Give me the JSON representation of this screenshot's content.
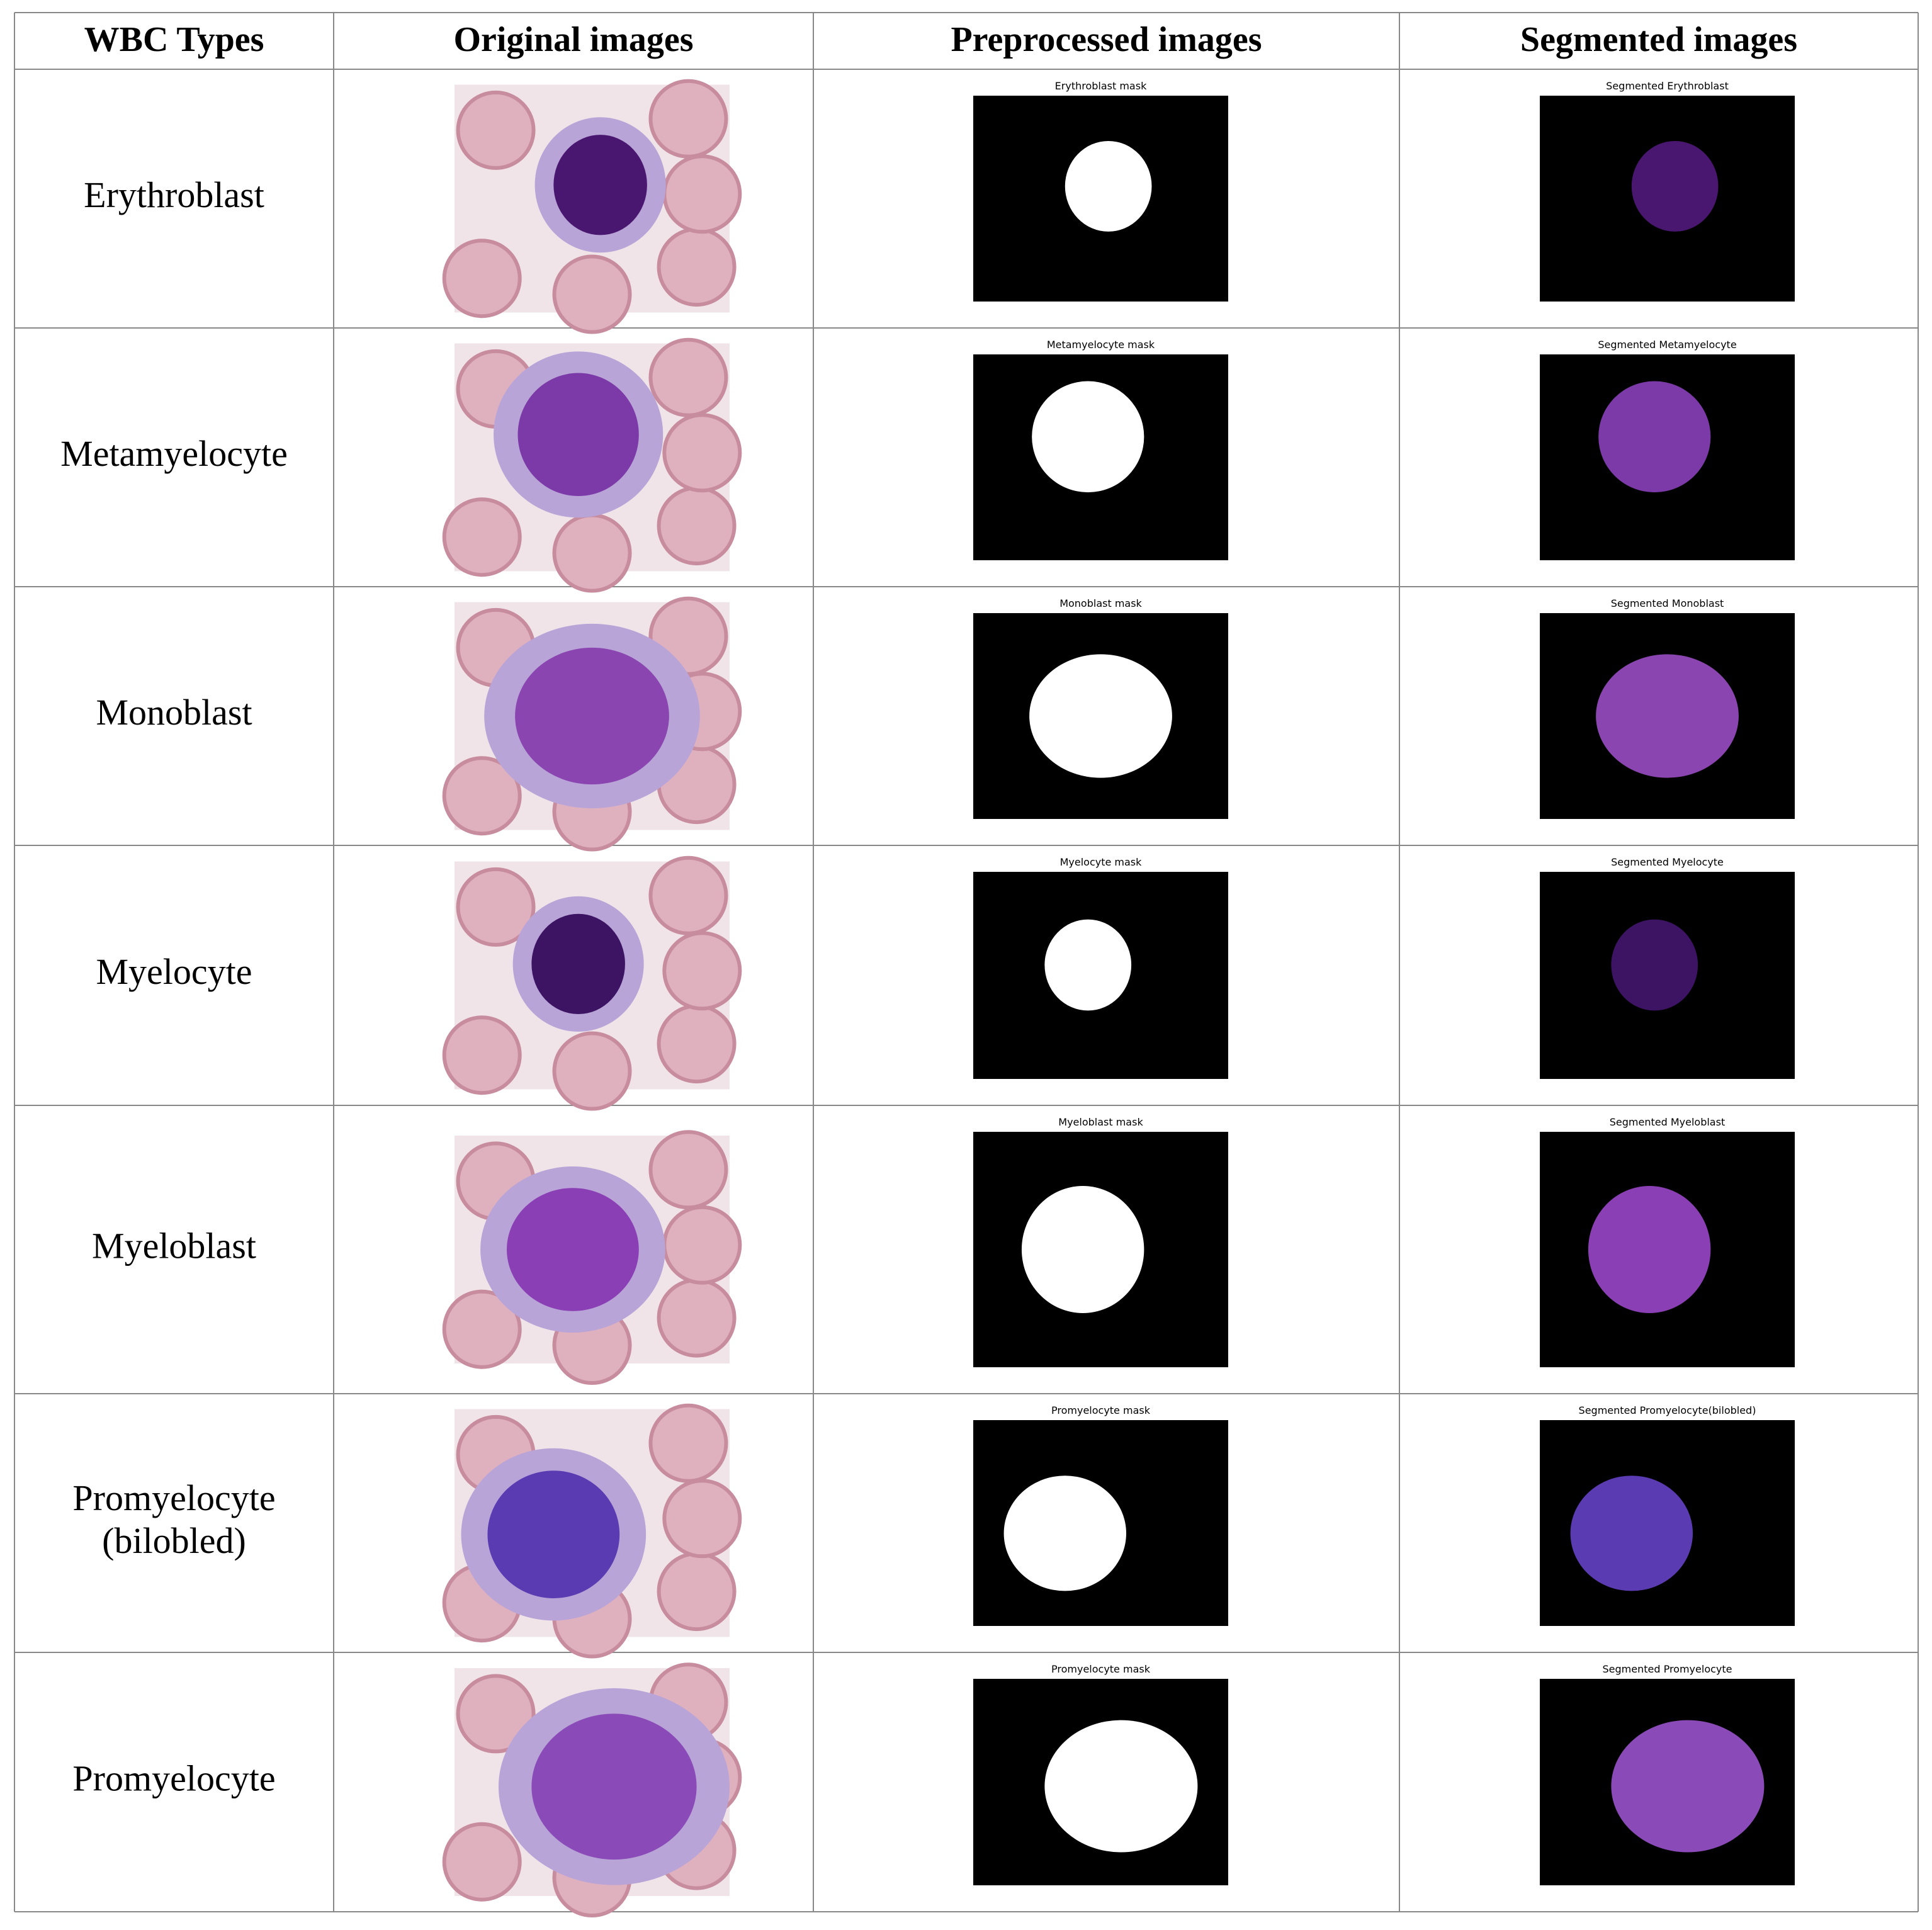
{
  "table": {
    "header": [
      "WBC Types",
      "Original images",
      "Preprocessed images",
      "Segmented images"
    ],
    "rows": [
      {
        "label": [
          "Erythroblast"
        ],
        "mask_title": "Erythroblast mask",
        "segmented_title": "Segmented Erythroblast"
      },
      {
        "label": [
          "Metamyelocyte"
        ],
        "mask_title": "Metamyelocyte mask",
        "segmented_title": "Segmented Metamyelocyte"
      },
      {
        "label": [
          "Monoblast"
        ],
        "mask_title": "Monoblast mask",
        "segmented_title": "Segmented Monoblast"
      },
      {
        "label": [
          "Myelocyte"
        ],
        "mask_title": "Myelocyte mask",
        "segmented_title": "Segmented Myelocyte"
      },
      {
        "label": [
          "Myeloblast"
        ],
        "mask_title": "Myeloblast mask",
        "segmented_title": "Segmented Myeloblast"
      },
      {
        "label": [
          "Promyelocyte",
          "(bilobled)"
        ],
        "mask_title": "Promyelocyte mask",
        "segmented_title": "Segmented Promyelocyte(bilobled)"
      },
      {
        "label": [
          "Promyelocyte"
        ],
        "mask_title": "Promyelocyte mask",
        "segmented_title": "Segmented Promyelocyte"
      }
    ]
  }
}
